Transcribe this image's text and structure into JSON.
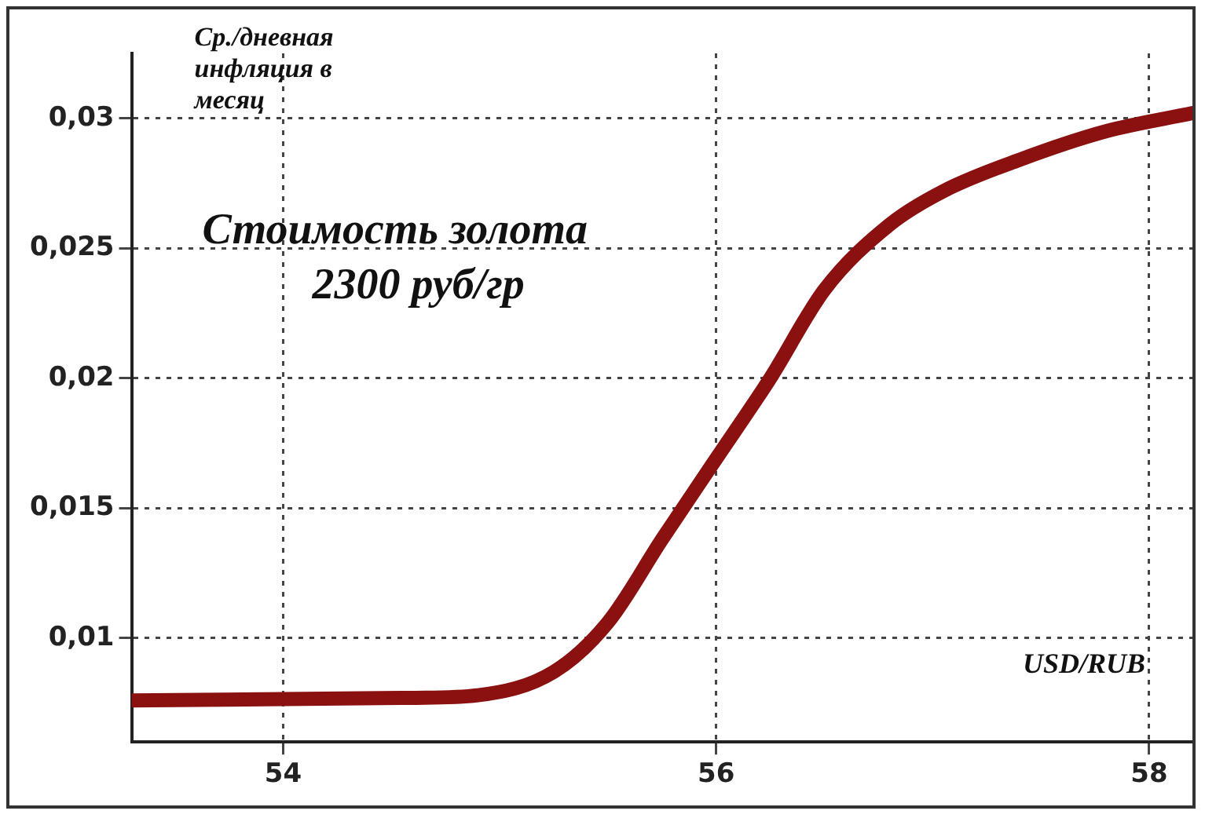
{
  "chart_data": {
    "type": "line",
    "ylabel": "Ср./дневная инфляция в месяц",
    "xlabel": "USD/RUB",
    "annotations": [
      "Стоимость золота 2300 руб/гр"
    ],
    "x": [
      53.3,
      54.6,
      54.9,
      55.25,
      55.5,
      55.75,
      56.0,
      56.25,
      56.5,
      56.8,
      57.05,
      57.4,
      57.8,
      58.2
    ],
    "series": [
      {
        "color": "#8b1010",
        "values": [
          0.0076,
          0.0077,
          0.0078,
          0.0087,
          0.0106,
          0.0138,
          0.0169,
          0.02,
          0.0234,
          0.0259,
          0.0272,
          0.0284,
          0.0295,
          0.0302
        ]
      }
    ],
    "xlim": [
      53.3,
      58.2
    ],
    "xticks": [
      54,
      56,
      58
    ],
    "ylim": [
      0.006,
      0.0325
    ],
    "yticks": [
      {
        "value": 0.01,
        "label": "0,01"
      },
      {
        "value": 0.015,
        "label": "0,015"
      },
      {
        "value": 0.02,
        "label": "0,02"
      },
      {
        "value": 0.025,
        "label": "0,025"
      },
      {
        "value": 0.03,
        "label": "0,03"
      }
    ],
    "grid": true,
    "legend": false,
    "marker": "none",
    "line_style": "solid"
  }
}
